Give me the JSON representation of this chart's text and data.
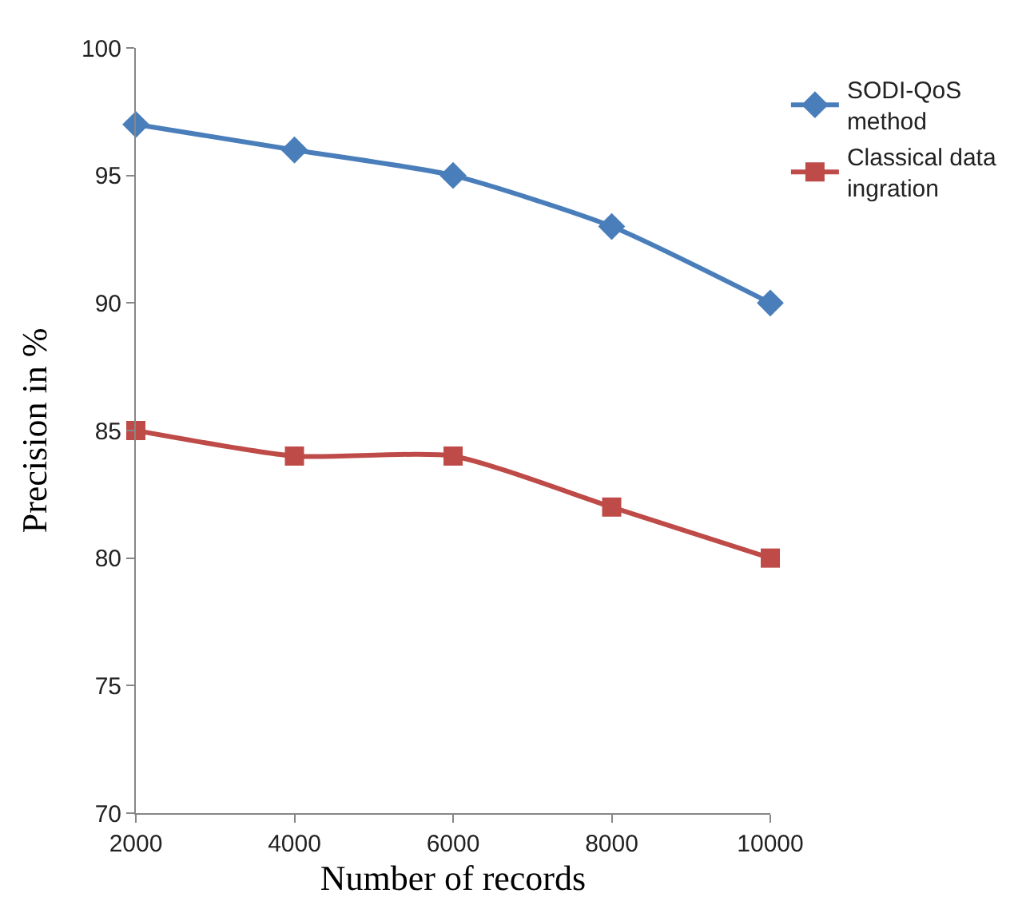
{
  "chart_data": {
    "type": "line",
    "xlabel": "Number of records",
    "ylabel": "Precision in %",
    "x": [
      2000,
      4000,
      6000,
      8000,
      10000
    ],
    "series": [
      {
        "name": "SODI-QoS method",
        "color": "#4a7ebb",
        "marker": "diamond",
        "values": [
          97,
          96,
          95,
          93,
          90
        ]
      },
      {
        "name": "Classical data ingration",
        "color": "#be4b48",
        "marker": "square",
        "values": [
          85,
          84,
          84,
          82,
          80
        ]
      }
    ],
    "xlim": [
      2000,
      10000
    ],
    "xticks": [
      2000,
      4000,
      6000,
      8000,
      10000
    ],
    "ylim": [
      70,
      100
    ],
    "yticks": [
      70,
      75,
      80,
      85,
      90,
      95,
      100
    ],
    "legend": "right",
    "line_style": "solid"
  }
}
